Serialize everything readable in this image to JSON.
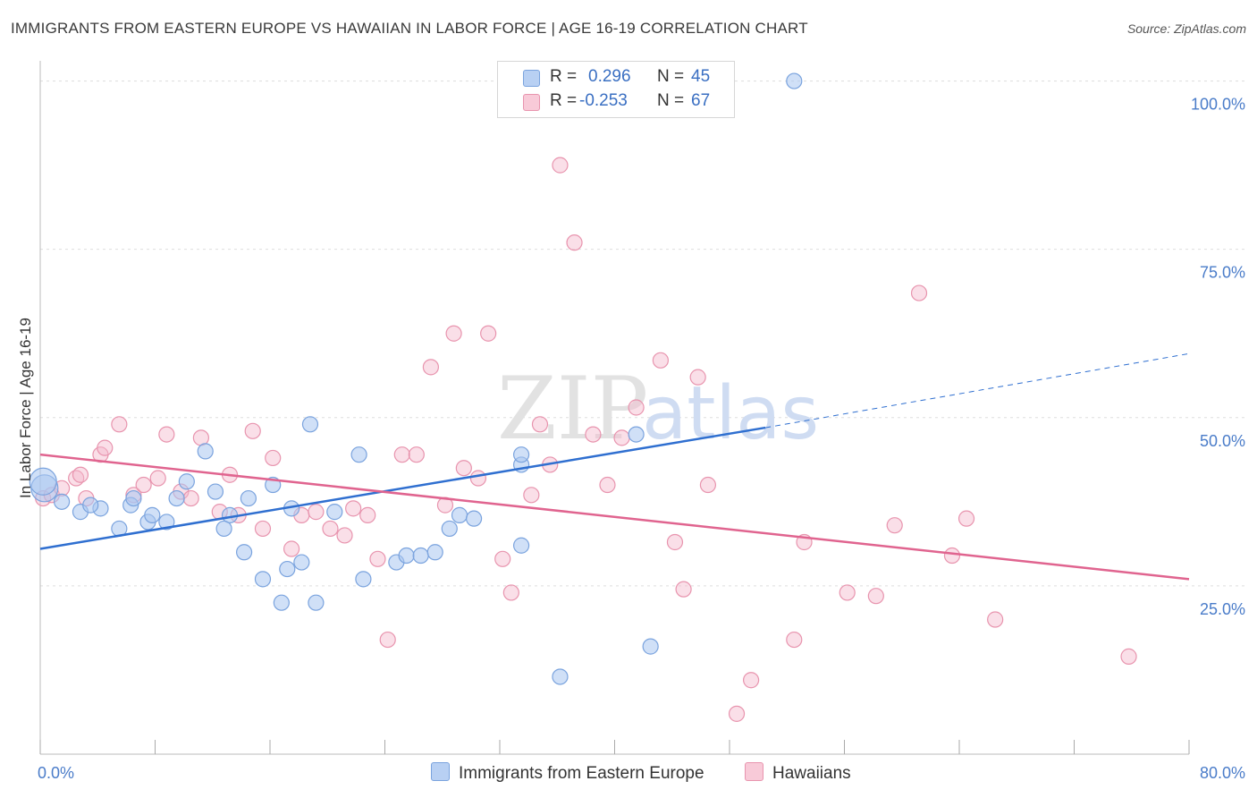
{
  "title": "IMMIGRANTS FROM EASTERN EUROPE VS HAWAIIAN IN LABOR FORCE | AGE 16-19 CORRELATION CHART",
  "source": "Source: ZipAtlas.com",
  "watermark": {
    "zip": "ZIP",
    "atlas": "atlas"
  },
  "legend": {
    "rows": [
      {
        "r_label": "R =",
        "r_value": "0.296",
        "n_label": "N =",
        "n_value": "45"
      },
      {
        "r_label": "R =",
        "r_value": "-0.253",
        "n_label": "N =",
        "n_value": "67"
      }
    ],
    "bottom": [
      "Immigrants from Eastern Europe",
      "Hawaiians"
    ]
  },
  "colors": {
    "blue_fill": "#a9c6f0",
    "blue_stroke": "#7aa3de",
    "blue_line": "#2f6fd0",
    "pink_fill": "#f5b8cb",
    "pink_stroke": "#e894ae",
    "pink_line": "#e0648f",
    "tick_text": "#4a7cc9",
    "grid": "#dddddd"
  },
  "chart_data": {
    "type": "scatter",
    "title": "IMMIGRANTS FROM EASTERN EUROPE VS HAWAIIAN IN LABOR FORCE | AGE 16-19 CORRELATION CHART",
    "xlabel": "",
    "ylabel": "In Labor Force | Age 16-19",
    "xlim": [
      0,
      80
    ],
    "ylim": [
      0,
      103
    ],
    "x_tick_labels": [
      "0.0%",
      "80.0%"
    ],
    "y_ticks": [
      25,
      50,
      75,
      100
    ],
    "y_tick_labels": [
      "25.0%",
      "50.0%",
      "75.0%",
      "100.0%"
    ],
    "series": [
      {
        "name": "Immigrants from Eastern Europe",
        "color": "blue",
        "points": [
          [
            0.3,
            39.5
          ],
          [
            1.5,
            37.5
          ],
          [
            2.8,
            36
          ],
          [
            4.2,
            36.5
          ],
          [
            5.5,
            33.5
          ],
          [
            6.3,
            37
          ],
          [
            7.5,
            34.5
          ],
          [
            8.8,
            34.5
          ],
          [
            6.5,
            38
          ],
          [
            7.8,
            35.5
          ],
          [
            9.5,
            38
          ],
          [
            10.2,
            40.5
          ],
          [
            11.5,
            45
          ],
          [
            13.2,
            35.5
          ],
          [
            14.5,
            38
          ],
          [
            12.8,
            33.5
          ],
          [
            14.2,
            30
          ],
          [
            16.2,
            40
          ],
          [
            18.8,
            49
          ],
          [
            17.5,
            36.5
          ],
          [
            15.5,
            26
          ],
          [
            17.2,
            27.5
          ],
          [
            18.2,
            28.5
          ],
          [
            19.2,
            22.5
          ],
          [
            22.5,
            26
          ],
          [
            22.2,
            44.5
          ],
          [
            24.8,
            28.5
          ],
          [
            25.5,
            29.5
          ],
          [
            26.5,
            29.5
          ],
          [
            27.5,
            30
          ],
          [
            28.5,
            33.5
          ],
          [
            29.2,
            35.5
          ],
          [
            30.2,
            35
          ],
          [
            33.5,
            31
          ],
          [
            33.5,
            43
          ],
          [
            36.2,
            11.5
          ],
          [
            33.5,
            44.5
          ],
          [
            41.5,
            47.5
          ],
          [
            42.5,
            16
          ],
          [
            52.5,
            100
          ],
          [
            0.2,
            40.5
          ],
          [
            3.5,
            37
          ],
          [
            12.2,
            39
          ],
          [
            16.8,
            22.5
          ],
          [
            20.5,
            36
          ]
        ],
        "trend": {
          "x": [
            0,
            50.5
          ],
          "y": [
            30.5,
            48.5
          ],
          "extended_to": [
            80,
            59.5
          ]
        }
      },
      {
        "name": "Hawaiians",
        "color": "pink",
        "points": [
          [
            0.2,
            38
          ],
          [
            0.8,
            38.5
          ],
          [
            1.5,
            39.5
          ],
          [
            2.5,
            41
          ],
          [
            2.8,
            41.5
          ],
          [
            3.2,
            38
          ],
          [
            4.2,
            44.5
          ],
          [
            4.5,
            45.5
          ],
          [
            5.5,
            49
          ],
          [
            6.5,
            38.5
          ],
          [
            7.2,
            40
          ],
          [
            8.2,
            41
          ],
          [
            8.8,
            47.5
          ],
          [
            9.8,
            39
          ],
          [
            10.5,
            38
          ],
          [
            11.2,
            47
          ],
          [
            12.5,
            36
          ],
          [
            13.2,
            41.5
          ],
          [
            13.8,
            35.5
          ],
          [
            14.8,
            48
          ],
          [
            15.5,
            33.5
          ],
          [
            16.2,
            44
          ],
          [
            17.5,
            30.5
          ],
          [
            18.2,
            35.5
          ],
          [
            19.2,
            36
          ],
          [
            20.2,
            33.5
          ],
          [
            21.2,
            32.5
          ],
          [
            21.8,
            36.5
          ],
          [
            22.8,
            35.5
          ],
          [
            23.5,
            29
          ],
          [
            24.2,
            17
          ],
          [
            25.2,
            44.5
          ],
          [
            26.2,
            44.5
          ],
          [
            27.2,
            57.5
          ],
          [
            28.2,
            37
          ],
          [
            28.8,
            62.5
          ],
          [
            29.5,
            42.5
          ],
          [
            30.5,
            41
          ],
          [
            31.2,
            62.5
          ],
          [
            32.2,
            29
          ],
          [
            32.8,
            24
          ],
          [
            34.2,
            38.5
          ],
          [
            34.8,
            49
          ],
          [
            35.5,
            43
          ],
          [
            36.2,
            87.5
          ],
          [
            37.2,
            76
          ],
          [
            38.5,
            47.5
          ],
          [
            39.5,
            40
          ],
          [
            40.5,
            47
          ],
          [
            41.5,
            51.5
          ],
          [
            43.2,
            58.5
          ],
          [
            44.2,
            31.5
          ],
          [
            44.8,
            24.5
          ],
          [
            45.8,
            56
          ],
          [
            46.5,
            40
          ],
          [
            48.5,
            6
          ],
          [
            49.5,
            11
          ],
          [
            52.5,
            17
          ],
          [
            53.2,
            31.5
          ],
          [
            56.2,
            24
          ],
          [
            58.2,
            23.5
          ],
          [
            59.5,
            34
          ],
          [
            61.2,
            68.5
          ],
          [
            63.5,
            29.5
          ],
          [
            64.5,
            35
          ],
          [
            66.5,
            20
          ],
          [
            75.8,
            14.5
          ]
        ],
        "trend": {
          "x": [
            0,
            80
          ],
          "y": [
            44.5,
            26
          ]
        }
      }
    ]
  }
}
